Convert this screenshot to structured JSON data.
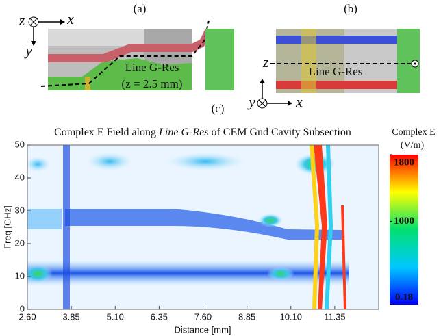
{
  "panels": {
    "a": {
      "label": "(a)",
      "axis_z": "z",
      "axis_x": "x",
      "axis_y": "y",
      "line": "Line G-Res",
      "note": "(z = 2.5 mm)"
    },
    "b": {
      "label": "(b)",
      "axis_z": "z",
      "axis_y": "y",
      "axis_x": "x",
      "line": "Line G-Res"
    },
    "c": {
      "label": "(c)"
    }
  },
  "chart_data": {
    "type": "contour",
    "title": [
      "Complex E Field along",
      "Line G-Res",
      "of CEM Gnd Cavity Subsection"
    ],
    "xlabel": "Distance [mm]",
    "ylabel": "Freq [GHz]",
    "xlim": [
      2.6,
      12.6
    ],
    "xticks": [
      {
        "value": 2.6,
        "label": "2.60"
      },
      {
        "value": 3.85,
        "label": "3.85"
      },
      {
        "value": 5.1,
        "label": "5.10"
      },
      {
        "value": 6.35,
        "label": "6.35"
      },
      {
        "value": 7.6,
        "label": "7.60"
      },
      {
        "value": 8.85,
        "label": "8.85"
      },
      {
        "value": 10.1,
        "label": "10.10"
      },
      {
        "value": 11.35,
        "label": "11.35"
      }
    ],
    "ylim": [
      0,
      50
    ],
    "yticks": [
      0,
      10,
      20,
      30,
      40,
      50
    ],
    "colorbar_title": [
      "Complex E",
      "(V/m)"
    ],
    "clim": [
      0.18,
      1800
    ],
    "cticks": [
      0.18,
      1000,
      1800
    ],
    "colors": [
      "#0000ff",
      "#00c8ff",
      "#00e070",
      "#ffff00",
      "#ff0000"
    ]
  }
}
